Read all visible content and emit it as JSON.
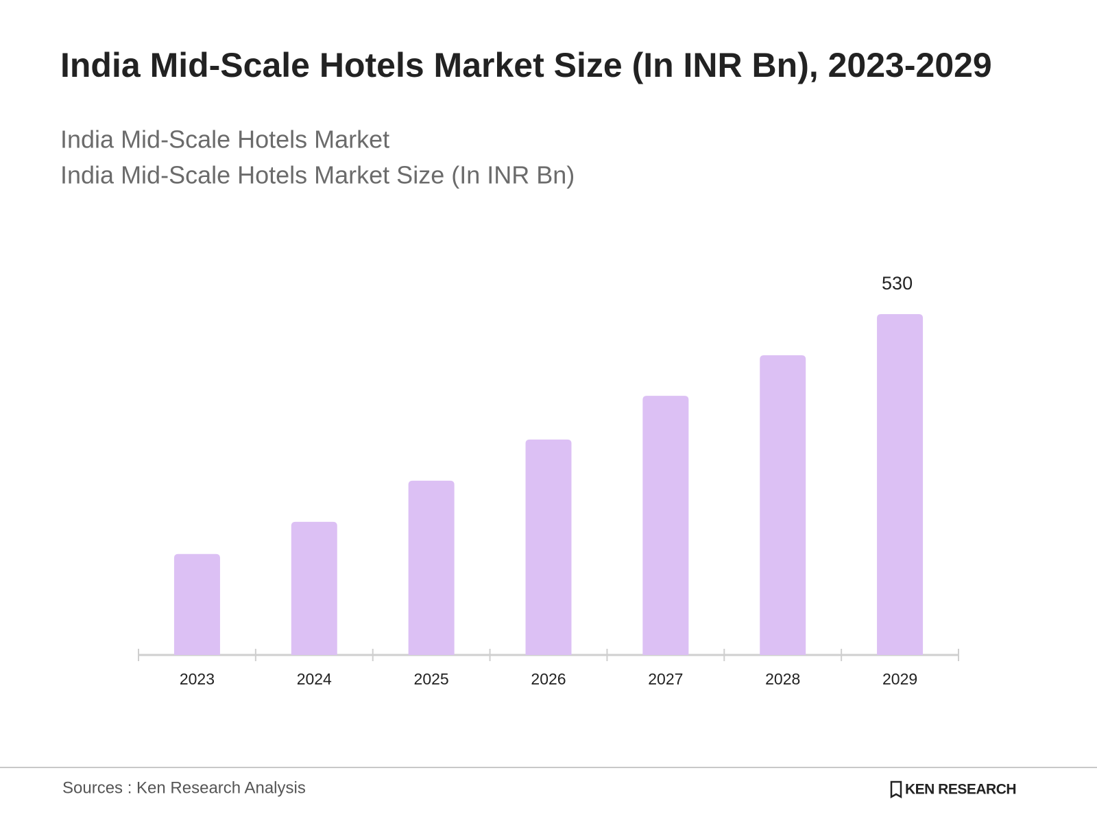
{
  "chart_data": {
    "type": "bar",
    "title": "India Mid-Scale Hotels Market Size (In INR Bn), 2023-2029",
    "subtitle": [
      "India Mid-Scale Hotels Market",
      "India Mid-Scale Hotels Market Size (In INR Bn)"
    ],
    "categories": [
      "2023",
      "2024",
      "2025",
      "2026",
      "2027",
      "2028",
      "2029"
    ],
    "values": [
      157,
      207,
      271,
      335,
      403,
      466,
      530
    ],
    "value_labels": [
      null,
      null,
      null,
      null,
      null,
      null,
      "530"
    ],
    "color": "#dcc0f4",
    "source": "Sources : Ken Research Analysis",
    "brand": "KEN RESEARCH"
  }
}
